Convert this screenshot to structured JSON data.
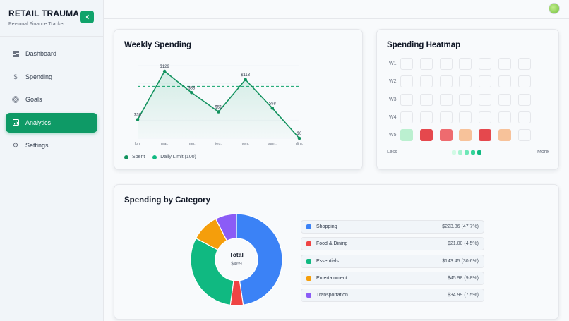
{
  "app": {
    "title": "RETAIL TRAUMA",
    "subtitle": "Personal Finance Tracker"
  },
  "sidebar": {
    "items": [
      {
        "label": "Dashboard",
        "icon": "dashboard-icon",
        "active": false
      },
      {
        "label": "Spending",
        "icon": "dollar-icon",
        "active": false
      },
      {
        "label": "Goals",
        "icon": "target-icon",
        "active": false
      },
      {
        "label": "Analytics",
        "icon": "chart-icon",
        "active": true
      },
      {
        "label": "Settings",
        "icon": "gear-icon",
        "active": false
      }
    ]
  },
  "colors": {
    "accent": "#10a36b",
    "line": "#12925e"
  },
  "weekly": {
    "title": "Weekly Spending",
    "legend_spent": "Spent",
    "legend_limit": "Daily Limit (100)"
  },
  "heatmap": {
    "title": "Spending Heatmap",
    "rows": [
      "W1",
      "W2",
      "W3",
      "W4",
      "W5"
    ],
    "less_label": "Less",
    "more_label": "More",
    "week5_colors": [
      "#bbf0d0",
      "#e5484d",
      "#ee6b6f",
      "#f7c29a",
      "#e5484d",
      "#f7c29a",
      "#f8fafc"
    ],
    "scale_colors": [
      "#d1fae5",
      "#a7f3d0",
      "#6ee7b7",
      "#34d399",
      "#10b981"
    ]
  },
  "category": {
    "title": "Spending by Category",
    "total_label": "Total",
    "total_value": "$469",
    "items": [
      {
        "name": "Shopping",
        "value": "$223.86 (47.7%)",
        "color": "#3b82f6",
        "pct": 47.7
      },
      {
        "name": "Food & Dining",
        "value": "$21.00 (4.5%)",
        "color": "#ef4444",
        "pct": 4.5
      },
      {
        "name": "Essentials",
        "value": "$143.45 (30.6%)",
        "color": "#10b981",
        "pct": 30.6
      },
      {
        "name": "Entertainment",
        "value": "$45.98 (9.8%)",
        "color": "#f59e0b",
        "pct": 9.8
      },
      {
        "name": "Transportation",
        "value": "$34.99 (7.5%)",
        "color": "#8b5cf6",
        "pct": 7.5
      }
    ]
  },
  "chart_data": {
    "type": "line",
    "title": "Weekly Spending",
    "categories": [
      "lun.",
      "mar.",
      "mer.",
      "jeu.",
      "ven.",
      "sam.",
      "dim."
    ],
    "values": [
      36,
      129,
      88,
      51,
      113,
      58,
      0
    ],
    "labels": [
      "$36",
      "$129",
      "$88",
      "$51",
      "$113",
      "$58",
      "$0"
    ],
    "limit": 100,
    "ylim": [
      0,
      140
    ],
    "series": [
      {
        "name": "Spent",
        "values": [
          36,
          129,
          88,
          51,
          113,
          58,
          0
        ]
      },
      {
        "name": "Daily Limit (100)",
        "values": [
          100,
          100,
          100,
          100,
          100,
          100,
          100
        ]
      }
    ]
  }
}
